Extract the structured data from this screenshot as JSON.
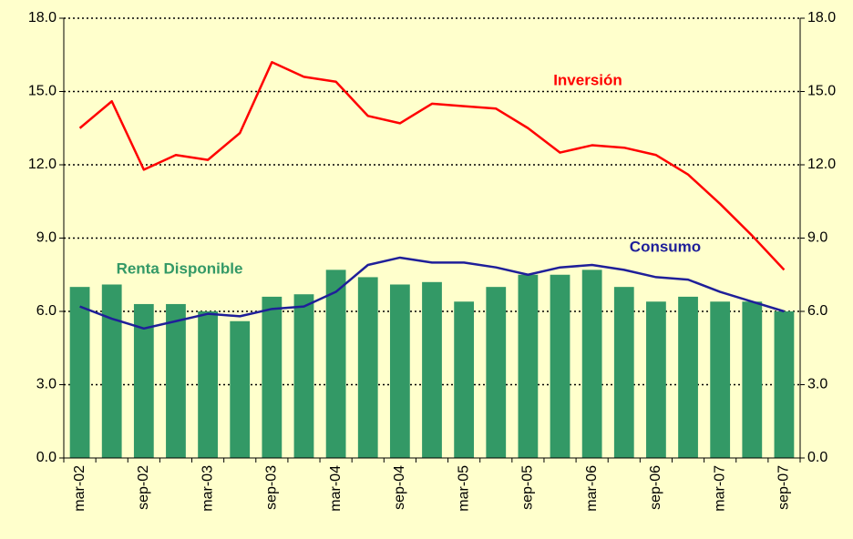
{
  "chart_data": {
    "type": "bar",
    "categories": [
      "mar-02",
      null,
      "sep-02",
      null,
      "mar-03",
      null,
      "sep-03",
      null,
      "mar-04",
      null,
      "sep-04",
      null,
      "mar-05",
      null,
      "sep-05",
      null,
      "mar-06",
      null,
      "sep-06",
      null,
      "mar-07",
      null,
      "sep-07"
    ],
    "series": [
      {
        "name": "Renta Disponible",
        "color": "#339966",
        "type": "bar",
        "values": [
          7.0,
          7.1,
          6.3,
          6.3,
          6.0,
          5.6,
          6.6,
          6.7,
          7.7,
          7.4,
          7.1,
          7.2,
          6.4,
          7.0,
          7.5,
          7.5,
          7.7,
          7.0,
          6.4,
          6.6,
          6.4,
          6.4,
          6.0
        ]
      },
      {
        "name": "Inversión",
        "color": "#ff0000",
        "type": "line",
        "values": [
          13.5,
          14.6,
          11.8,
          12.4,
          12.2,
          13.3,
          16.2,
          15.6,
          15.4,
          14.0,
          13.7,
          14.5,
          14.4,
          14.3,
          13.5,
          12.5,
          12.8,
          12.7,
          12.4,
          11.6,
          10.4,
          9.1,
          7.7
        ]
      },
      {
        "name": "Consumo",
        "color": "#1f1f99",
        "type": "line",
        "values": [
          6.2,
          5.7,
          5.3,
          5.6,
          5.9,
          5.8,
          6.1,
          6.2,
          6.8,
          7.9,
          8.2,
          8.0,
          8.0,
          7.8,
          7.5,
          7.8,
          7.9,
          7.7,
          7.4,
          7.3,
          6.8,
          6.4,
          6.0
        ]
      }
    ],
    "ylim": [
      0,
      18
    ],
    "yticks": [
      {
        "value": 0,
        "label": "0.0"
      },
      {
        "value": 3,
        "label": "3.0"
      },
      {
        "value": 6,
        "label": "6.0"
      },
      {
        "value": 9,
        "label": "9.0"
      },
      {
        "value": 12,
        "label": "12.0"
      },
      {
        "value": 15,
        "label": "15.0"
      },
      {
        "value": 18,
        "label": "18.0"
      }
    ],
    "y2lim": [
      0,
      18
    ],
    "y2ticks": [
      {
        "value": 0,
        "label": "0.0"
      },
      {
        "value": 3,
        "label": "3.0"
      },
      {
        "value": 6,
        "label": "6.0"
      },
      {
        "value": 9,
        "label": "9.0"
      },
      {
        "value": 12,
        "label": "12.0"
      },
      {
        "value": 15,
        "label": "15.0"
      },
      {
        "value": 18,
        "label": "18.0"
      }
    ],
    "grid": true
  }
}
